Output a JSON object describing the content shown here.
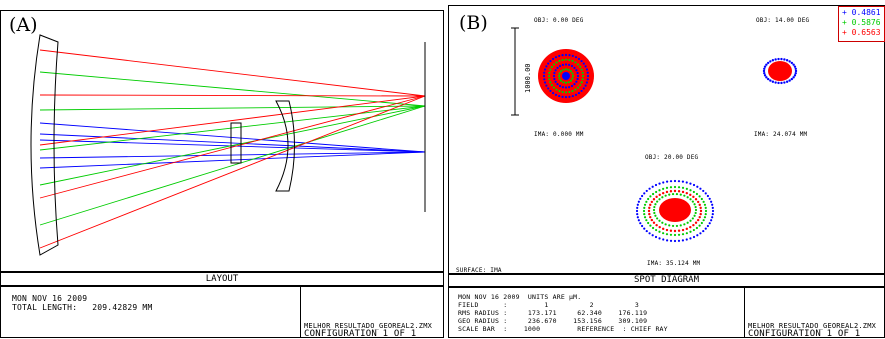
{
  "panel_a": {
    "label": "(A)",
    "plot_title": "LAYOUT",
    "info_line1": "MON NOV 16 2009",
    "info_line2": "TOTAL LENGTH:   209.42829 MM",
    "file_name": "MELHOR_RESULTADO_GEOREAL2.ZMX",
    "configuration": "CONFIGURATION 1 OF 1"
  },
  "panel_b": {
    "label": "(B)",
    "plot_title": "SPOT DIAGRAM",
    "surface": "SURFACE: IMA",
    "scale_label": "1000.00",
    "fields": [
      {
        "obj": "OBJ: 0.00 DEG",
        "ima": "IMA: 0.000 MM"
      },
      {
        "obj": "OBJ: 14.00 DEG",
        "ima": "IMA: 24.074 MM"
      },
      {
        "obj": "OBJ: 20.00 DEG",
        "ima": "IMA: 35.124 MM"
      }
    ],
    "legend": [
      {
        "symbol": "+",
        "text": "0.4861",
        "color": "#0000ff"
      },
      {
        "symbol": "+",
        "text": "0.5876",
        "color": "#00cc00"
      },
      {
        "symbol": "+",
        "text": "0.6563",
        "color": "#ff0000"
      }
    ],
    "info_lines": [
      "MON NOV 16 2009  UNITS ARE µM.",
      "FIELD      :         1          2          3",
      "RMS RADIUS :     173.171     62.340    176.119",
      "GEO RADIUS :     236.670    153.156    309.109",
      "SCALE BAR  :    1000         REFERENCE  : CHIEF RAY"
    ],
    "file_name": "MELHOR_RESULTADO_GEOREAL2.ZMX",
    "configuration": "CONFIGURATION 1 OF 1"
  },
  "colors": {
    "blue": "#0000ff",
    "green": "#00cc00",
    "red": "#ff0000"
  }
}
